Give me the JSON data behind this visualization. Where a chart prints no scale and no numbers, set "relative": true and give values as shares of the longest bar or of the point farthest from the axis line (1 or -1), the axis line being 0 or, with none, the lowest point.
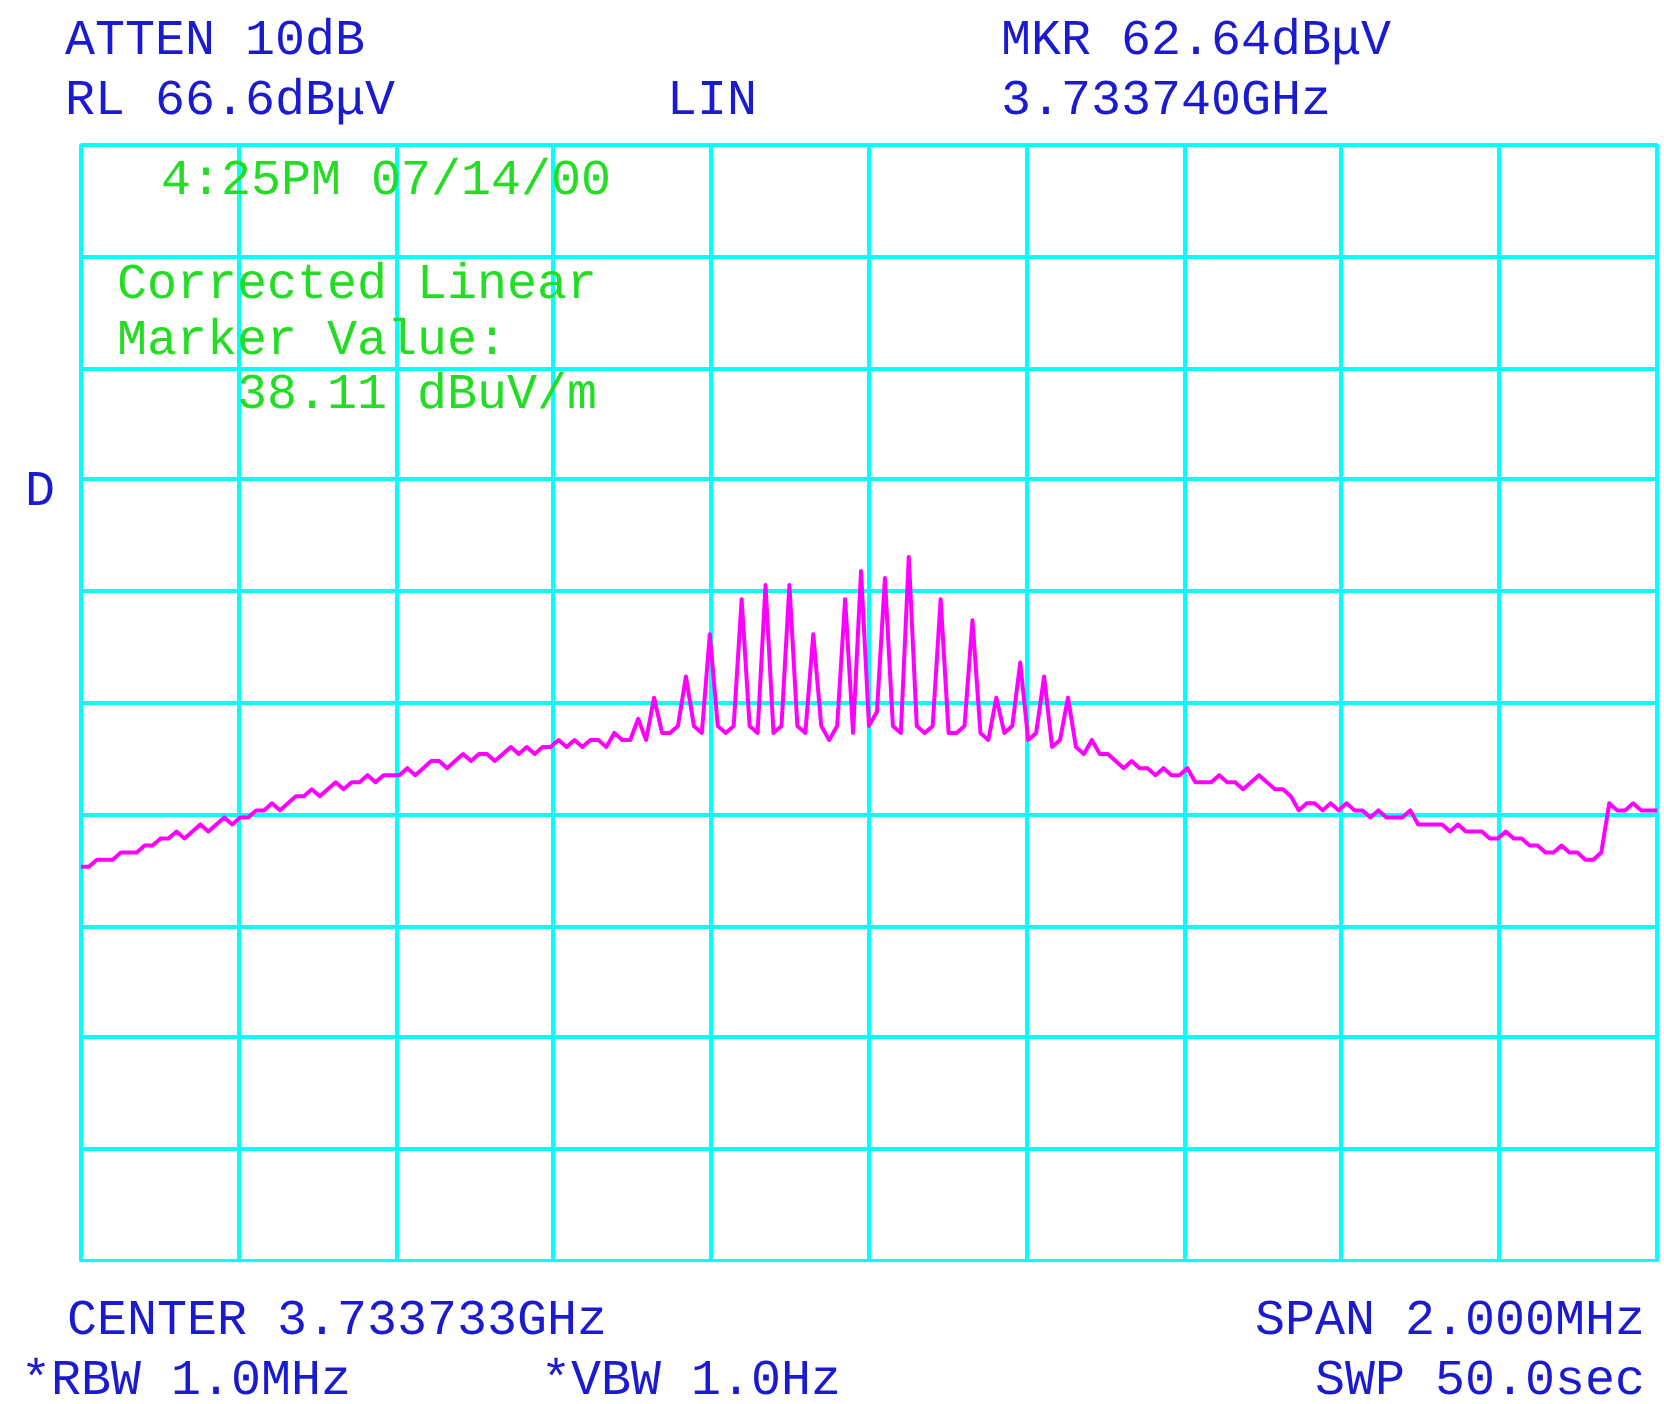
{
  "chart_data": {
    "type": "line",
    "relative": true,
    "grid": true,
    "categories": [
      null,
      null,
      null,
      null,
      null,
      null,
      null,
      null,
      null,
      null,
      null,
      null,
      null,
      null,
      null,
      null,
      null,
      null,
      null,
      null,
      null,
      null,
      null,
      null,
      null,
      null,
      null,
      null,
      null,
      null,
      null,
      null,
      null,
      null,
      null,
      null,
      null,
      null,
      null,
      null,
      null,
      null,
      null,
      null,
      null,
      null,
      null,
      null,
      null,
      null,
      null,
      null,
      null,
      null,
      null,
      null,
      null,
      null,
      null,
      null,
      null,
      null,
      null,
      null,
      null,
      null,
      null,
      null,
      null,
      null,
      null,
      null,
      null,
      null,
      null,
      null,
      null,
      null,
      null,
      null,
      null,
      null,
      null,
      null,
      null,
      null,
      null,
      null,
      null,
      null,
      null,
      null,
      null,
      null,
      null,
      null,
      null,
      null,
      null,
      null,
      null,
      null,
      null,
      null,
      null,
      null,
      null,
      null,
      null,
      null,
      null,
      null,
      null,
      null,
      null,
      null,
      null,
      null,
      null,
      null,
      null,
      null,
      null,
      null,
      null,
      null,
      null,
      null,
      null,
      null,
      null,
      null,
      null,
      null,
      null,
      null,
      null,
      null,
      null,
      null,
      null,
      null,
      null,
      null,
      null,
      null,
      null,
      null,
      null,
      null,
      null,
      null,
      null,
      null,
      null,
      null,
      null,
      null,
      null,
      null,
      null,
      null,
      null,
      null,
      null,
      null,
      null,
      null,
      null,
      null,
      null,
      null,
      null,
      null,
      null,
      null,
      null,
      null,
      null,
      null,
      null,
      null,
      null,
      null,
      null,
      null,
      null,
      null,
      null,
      null,
      null,
      null,
      null,
      null,
      null,
      null,
      null,
      null,
      null
    ],
    "series": [
      {
        "color": "#ff00ff",
        "values": [
          0.56,
          0.56,
          0.57,
          0.57,
          0.57,
          0.58,
          0.58,
          0.58,
          0.59,
          0.59,
          0.6,
          0.6,
          0.61,
          0.6,
          0.61,
          0.62,
          0.61,
          0.62,
          0.63,
          0.62,
          0.63,
          0.63,
          0.64,
          0.64,
          0.65,
          0.64,
          0.65,
          0.66,
          0.66,
          0.67,
          0.66,
          0.67,
          0.68,
          0.67,
          0.68,
          0.68,
          0.69,
          0.68,
          0.69,
          0.69,
          0.69,
          0.7,
          0.69,
          0.7,
          0.71,
          0.71,
          0.7,
          0.71,
          0.72,
          0.71,
          0.72,
          0.72,
          0.71,
          0.72,
          0.73,
          0.72,
          0.73,
          0.72,
          0.73,
          0.73,
          0.74,
          0.73,
          0.74,
          0.73,
          0.74,
          0.74,
          0.73,
          0.75,
          0.74,
          0.74,
          0.77,
          0.74,
          0.8,
          0.75,
          0.75,
          0.76,
          0.83,
          0.76,
          0.75,
          0.89,
          0.76,
          0.75,
          0.76,
          0.94,
          0.76,
          0.75,
          0.96,
          0.75,
          0.76,
          0.96,
          0.76,
          0.75,
          0.89,
          0.76,
          0.74,
          0.76,
          0.94,
          0.75,
          0.98,
          0.76,
          0.78,
          0.97,
          0.76,
          0.75,
          1.0,
          0.76,
          0.75,
          0.76,
          0.94,
          0.75,
          0.75,
          0.76,
          0.91,
          0.75,
          0.74,
          0.8,
          0.75,
          0.76,
          0.85,
          0.74,
          0.75,
          0.83,
          0.73,
          0.74,
          0.8,
          0.73,
          0.72,
          0.74,
          0.72,
          0.72,
          0.71,
          0.7,
          0.71,
          0.7,
          0.7,
          0.69,
          0.7,
          0.69,
          0.69,
          0.7,
          0.68,
          0.68,
          0.68,
          0.69,
          0.68,
          0.68,
          0.67,
          0.68,
          0.69,
          0.68,
          0.67,
          0.67,
          0.66,
          0.64,
          0.65,
          0.65,
          0.64,
          0.65,
          0.64,
          0.65,
          0.64,
          0.64,
          0.63,
          0.64,
          0.63,
          0.63,
          0.63,
          0.64,
          0.62,
          0.62,
          0.62,
          0.62,
          0.61,
          0.62,
          0.61,
          0.61,
          0.61,
          0.6,
          0.6,
          0.61,
          0.6,
          0.6,
          0.59,
          0.59,
          0.58,
          0.58,
          0.59,
          0.58,
          0.58,
          0.57,
          0.57,
          0.58,
          0.65,
          0.64,
          0.64,
          0.65,
          0.64,
          0.64,
          0.64
        ]
      }
    ],
    "annotations": [
      "ATTEN 10dB",
      "RL 66.6dBμV",
      "LIN",
      "MKR 62.64dBμV",
      "3.733740GHz",
      "4:25PM  07/14/00",
      "Corrected Linear",
      "Marker Value:",
      "38.11 dBuV/m",
      "D",
      "CENTER 3.733733GHz",
      "SPAN 2.000MHz",
      "*RBW 1.0MHz",
      "*VBW 1.0Hz",
      "SWP 50.0sec"
    ]
  }
}
